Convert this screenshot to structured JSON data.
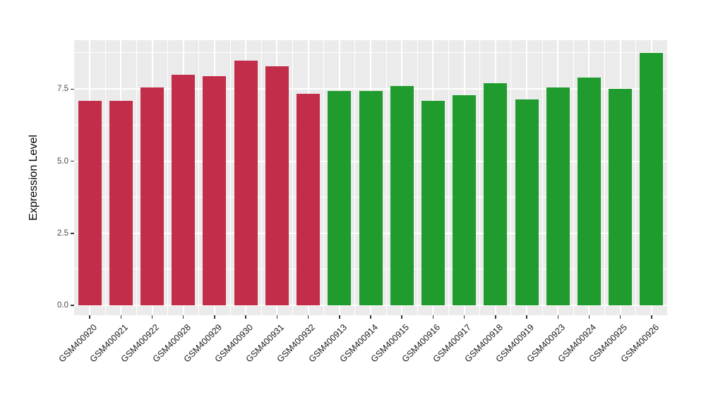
{
  "chart_data": {
    "type": "bar",
    "title": "",
    "xlabel": "",
    "ylabel": "Expression Level",
    "ylim": [
      0,
      9.2
    ],
    "yticks": [
      0.0,
      2.5,
      5.0,
      7.5
    ],
    "ytick_labels": [
      "0.0",
      "2.5",
      "5.0",
      "7.5"
    ],
    "grid": "on",
    "legend": "none",
    "categories": [
      "GSM400920",
      "GSM400921",
      "GSM400922",
      "GSM400928",
      "GSM400929",
      "GSM400930",
      "GSM400931",
      "GSM400932",
      "GSM400913",
      "GSM400914",
      "GSM400915",
      "GSM400916",
      "GSM400917",
      "GSM400918",
      "GSM400919",
      "GSM400923",
      "GSM400924",
      "GSM400925",
      "GSM400926"
    ],
    "values": [
      7.1,
      7.1,
      7.55,
      8.0,
      7.95,
      8.5,
      8.3,
      7.35,
      7.45,
      7.45,
      7.6,
      7.1,
      7.3,
      7.7,
      7.15,
      7.55,
      7.9,
      7.5,
      8.75
    ],
    "bar_colors": [
      "#C22E49",
      "#C22E49",
      "#C22E49",
      "#C22E49",
      "#C22E49",
      "#C22E49",
      "#C22E49",
      "#C22E49",
      "#209C2F",
      "#209C2F",
      "#209C2F",
      "#209C2F",
      "#209C2F",
      "#209C2F",
      "#209C2F",
      "#209C2F",
      "#209C2F",
      "#209C2F",
      "#209C2F"
    ]
  },
  "style": {
    "panel_background": "#EBEBEB",
    "grid_color": "#FFFFFF",
    "group1_color": "#C22E49",
    "group2_color": "#209C2F",
    "axis_text_color": "#4D4D4D"
  }
}
